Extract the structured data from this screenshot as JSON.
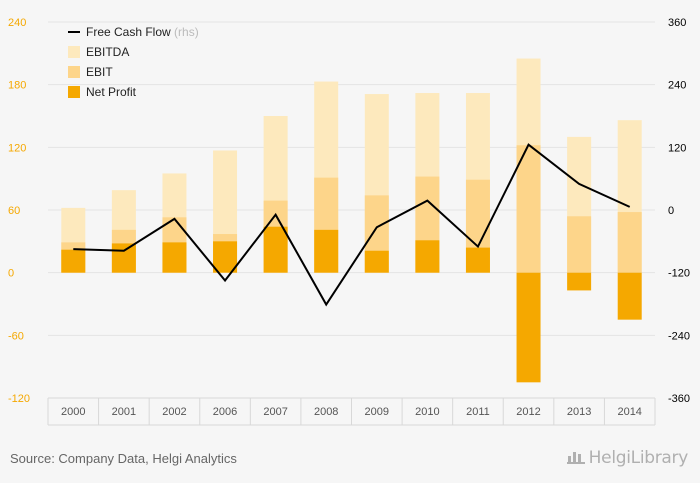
{
  "chart_data": {
    "type": "bar",
    "categories": [
      "2000",
      "2001",
      "2002",
      "2006",
      "2007",
      "2008",
      "2009",
      "2010",
      "2011",
      "2012",
      "2013",
      "2014"
    ],
    "series": [
      {
        "name": "EBITDA",
        "kind": "bar",
        "axis": "left",
        "color": "#fde9bd",
        "values": [
          62,
          79,
          95,
          117,
          150,
          183,
          171,
          172,
          172,
          205,
          130,
          146
        ]
      },
      {
        "name": "EBIT",
        "kind": "bar",
        "axis": "left",
        "color": "#fdd58a",
        "values": [
          29,
          41,
          53,
          37,
          69,
          91,
          74,
          92,
          89,
          122,
          54,
          58
        ]
      },
      {
        "name": "Net Profit",
        "kind": "bar",
        "axis": "left",
        "color": "#f5a800",
        "values": [
          22,
          28,
          29,
          30,
          44,
          41,
          21,
          31,
          24,
          -105,
          -17,
          -45
        ]
      },
      {
        "name": "Free Cash Flow",
        "name_suffix": "(rhs)",
        "kind": "line",
        "axis": "right",
        "color": "#000000",
        "values": [
          -75,
          -78,
          -17,
          -135,
          -9,
          -181,
          -33,
          18,
          -70,
          125,
          50,
          6
        ]
      }
    ],
    "left_axis": {
      "ylim": [
        -120,
        240
      ],
      "ticks": [
        "240",
        "180",
        "120",
        "60",
        "0",
        "-60",
        "-120"
      ],
      "tick_values": [
        240,
        180,
        120,
        60,
        0,
        -60,
        -120
      ],
      "color": "#f5a800"
    },
    "right_axis": {
      "ylim": [
        -360,
        360
      ],
      "ticks": [
        "360",
        "240",
        "120",
        "0",
        "-120",
        "-240",
        "-360"
      ],
      "tick_values": [
        360,
        240,
        120,
        0,
        -120,
        -240,
        -360
      ],
      "color": "#000000"
    },
    "legend_position": "top-left",
    "grid": true
  },
  "footer": {
    "source": "Source: Company Data, Helgi Analytics",
    "brand": "HelgiLibrary"
  }
}
